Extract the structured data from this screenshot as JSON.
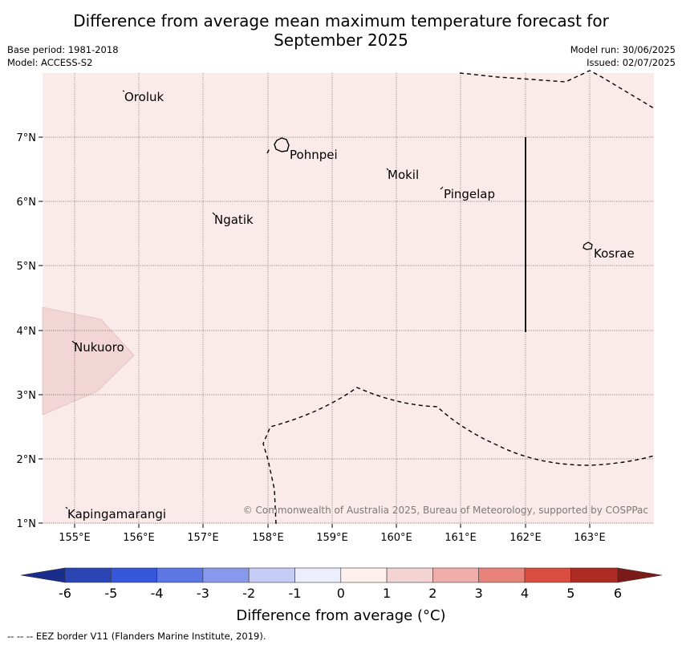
{
  "title": {
    "line1": "Difference from average mean maximum temperature forecast for",
    "line2": "September 2025"
  },
  "meta": {
    "base_period": "Base period: 1981-2018",
    "model": "Model: ACCESS-S2",
    "model_run": "Model run: 30/06/2025",
    "issued": "Issued: 02/07/2025"
  },
  "map": {
    "background_color": "#fbeaea",
    "anomaly_patch_color": "#f2d6d5",
    "lon_labels": [
      "155°E",
      "156°E",
      "157°E",
      "158°E",
      "159°E",
      "160°E",
      "161°E",
      "162°E",
      "163°E"
    ],
    "lat_labels": [
      "7°N",
      "6°N",
      "5°N",
      "4°N",
      "3°N",
      "2°N",
      "1°N"
    ],
    "places": {
      "oroluk": "Oroluk",
      "pohnpei": "Pohnpei",
      "mokil": "Mokil",
      "pingelap": "Pingelap",
      "ngatik": "Ngatik",
      "kosrae": "Kosrae",
      "nukuoro": "Nukuoro",
      "kapingamarangi": "Kapingamarangi"
    },
    "copyright": "© Commonwealth of Australia 2025, Bureau of Meteorology, supported by COSPPac"
  },
  "colorbar": {
    "label": "Difference from average (°C)",
    "ticks": [
      "-6",
      "-5",
      "-4",
      "-3",
      "-2",
      "-1",
      "0",
      "1",
      "2",
      "3",
      "4",
      "5",
      "6"
    ],
    "colors": [
      "#1b2d8c",
      "#2a45b3",
      "#3656db",
      "#5c76e3",
      "#8799eb",
      "#c4cbf4",
      "#eceefc",
      "#fdf0ee",
      "#f4d4d3",
      "#efaeab",
      "#e8837c",
      "#d94c40",
      "#ac2a24",
      "#7a1b17"
    ]
  },
  "footer": "--  --  -- EEZ border V11 (Flanders Marine Institute, 2019)."
}
